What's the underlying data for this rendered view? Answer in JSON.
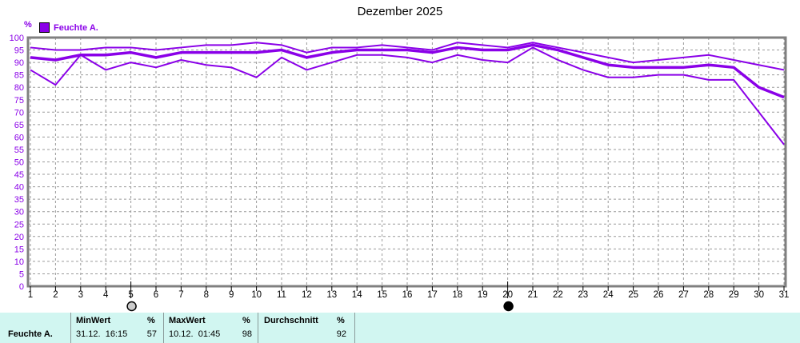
{
  "title": "Dezember 2025",
  "y_axis_unit": "%",
  "legend": {
    "label": "Feuchte A."
  },
  "colors": {
    "accent": "#8A00E8",
    "axis_frame": "#808080",
    "grid": "#9a9a9a",
    "tick": "#000000",
    "x_label": "#000000",
    "table_bg": "#D1F6F1",
    "full_moon_fill": "#cccccc",
    "new_moon_fill": "#000000"
  },
  "chart_data": {
    "type": "line",
    "title": "Dezember 2025",
    "ylabel": "%",
    "ylim": [
      0,
      100
    ],
    "y_tick_step": 5,
    "grid": true,
    "legend_position": "top-left",
    "x": [
      1,
      2,
      3,
      4,
      5,
      6,
      7,
      8,
      9,
      10,
      11,
      12,
      13,
      14,
      15,
      16,
      17,
      18,
      19,
      20,
      21,
      22,
      23,
      24,
      25,
      26,
      27,
      28,
      29,
      30,
      31
    ],
    "series": [
      {
        "name": "Feuchte A. Maximum",
        "values": [
          96,
          95,
          95,
          96,
          96,
          95,
          96,
          97,
          97,
          98,
          97,
          94,
          96,
          96,
          97,
          96,
          95,
          98,
          97,
          96,
          98,
          96,
          94,
          92,
          90,
          91,
          92,
          93,
          91,
          89,
          87
        ]
      },
      {
        "name": "Feuchte A. Durchschnitt",
        "values": [
          92,
          91,
          93,
          93,
          94,
          92,
          94,
          94,
          94,
          94,
          95,
          92,
          94,
          95,
          95,
          95,
          94,
          96,
          95,
          95,
          97,
          95,
          92,
          89,
          88,
          88,
          88,
          89,
          88,
          80,
          76
        ]
      },
      {
        "name": "Feuchte A. Minimum",
        "values": [
          87,
          81,
          93,
          87,
          90,
          88,
          91,
          89,
          88,
          84,
          92,
          87,
          90,
          93,
          93,
          92,
          90,
          93,
          91,
          90,
          96,
          91,
          87,
          84,
          84,
          85,
          85,
          83,
          83,
          70,
          57
        ]
      }
    ],
    "annotations": [
      {
        "x": 5,
        "symbol": "full-moon"
      },
      {
        "x": 20,
        "symbol": "new-moon"
      }
    ]
  },
  "table": {
    "row_label": "Feuchte A.",
    "columns": [
      {
        "header": "MinWert",
        "unit": "%",
        "value": "31.12.  16:15",
        "number": "57"
      },
      {
        "header": "MaxWert",
        "unit": "%",
        "value": "10.12.  01:45",
        "number": "98"
      },
      {
        "header": "Durchschnitt",
        "unit": "%",
        "value": "",
        "number": "92"
      }
    ]
  }
}
